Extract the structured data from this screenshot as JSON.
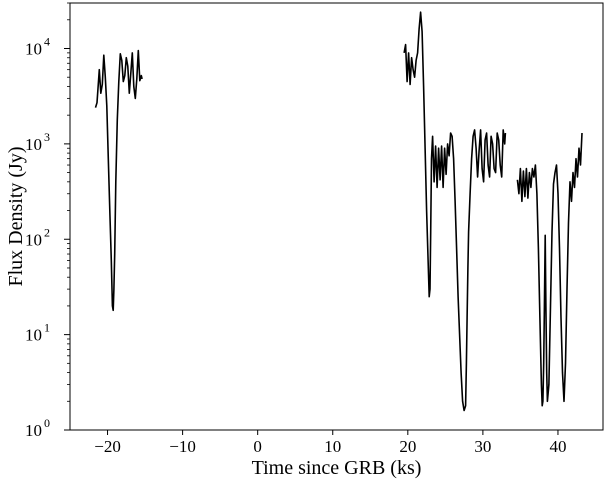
{
  "chart_data": {
    "type": "line",
    "title": "",
    "xlabel": "Time since GRB (ks)",
    "ylabel": "Flux Density (Jy)",
    "xlim": [
      -25,
      46
    ],
    "ylim": [
      1,
      30000
    ],
    "y_scale": "log",
    "grid": false,
    "x_ticks": [
      -20,
      -10,
      0,
      10,
      20,
      30,
      40
    ],
    "x_tick_labels": [
      "−20",
      "−10",
      "0",
      "10",
      "20",
      "30",
      "40"
    ],
    "y_ticks": [
      {
        "value": 1,
        "base": "10",
        "exp": "0"
      },
      {
        "value": 10,
        "base": "10",
        "exp": "1"
      },
      {
        "value": 100,
        "base": "10",
        "exp": "2"
      },
      {
        "value": 1000,
        "base": "10",
        "exp": "3"
      },
      {
        "value": 10000,
        "base": "10",
        "exp": "4"
      }
    ],
    "line_color": "#000000",
    "series": [
      {
        "segment": 1,
        "x": [
          -21.6,
          -21.4,
          -21.1,
          -20.9,
          -20.7,
          -20.5,
          -20.3,
          -20.1,
          -19.9,
          -19.7,
          -19.5,
          -19.35,
          -19.25,
          -19.15,
          -19.05,
          -18.9,
          -18.7,
          -18.5,
          -18.3,
          -18.1,
          -17.9,
          -17.7,
          -17.5,
          -17.3,
          -17.1,
          -16.9,
          -16.7,
          -16.5,
          -16.3,
          -16.1,
          -15.9,
          -15.7,
          -15.5,
          -15.4
        ],
        "y": [
          2400,
          2700,
          6000,
          3400,
          4200,
          8500,
          5000,
          2500,
          700,
          200,
          60,
          20,
          18,
          30,
          70,
          400,
          1800,
          4500,
          8800,
          7500,
          4500,
          5200,
          8000,
          6500,
          3400,
          5500,
          9000,
          4000,
          3000,
          4800,
          9500,
          4600,
          5200,
          4800
        ]
      },
      {
        "segment": 2,
        "x": [
          19.5,
          19.7,
          19.9,
          20.1,
          20.3,
          20.5,
          20.7,
          20.9,
          21.1,
          21.3,
          21.5,
          21.7,
          21.9,
          22.1,
          22.3,
          22.5,
          22.7,
          22.85,
          22.95,
          23.05,
          23.15,
          23.3,
          23.5,
          23.7,
          23.9,
          24.1,
          24.3,
          24.5,
          24.7,
          24.9,
          25.1,
          25.3,
          25.5,
          25.7,
          25.9,
          26.1,
          26.3,
          26.5,
          26.7,
          26.9,
          27.1,
          27.3,
          27.5,
          27.7,
          27.8,
          27.9,
          28.0,
          28.1,
          28.3,
          28.5,
          28.7,
          28.9,
          29.1,
          29.3,
          29.5,
          29.7,
          29.9,
          30.1,
          30.3,
          30.5,
          30.7,
          30.9,
          31.1,
          31.3,
          31.5,
          31.7,
          31.9,
          32.1,
          32.3,
          32.5,
          32.7,
          32.9,
          33.0
        ],
        "y": [
          9000,
          11000,
          4500,
          9000,
          4200,
          8000,
          6000,
          5000,
          7500,
          9000,
          16000,
          24000,
          15000,
          4000,
          900,
          200,
          60,
          25,
          30,
          120,
          700,
          1200,
          400,
          950,
          350,
          900,
          420,
          950,
          350,
          900,
          480,
          1000,
          750,
          1300,
          1200,
          700,
          250,
          80,
          25,
          10,
          4,
          2,
          1.6,
          1.8,
          5,
          15,
          50,
          120,
          300,
          700,
          1200,
          1400,
          900,
          450,
          850,
          1400,
          550,
          400,
          1100,
          1300,
          600,
          450,
          1200,
          1000,
          550,
          500,
          1300,
          1100,
          600,
          450,
          1400,
          1000,
          1300
        ]
      },
      {
        "segment": 3,
        "x": [
          34.6,
          34.8,
          35.0,
          35.2,
          35.4,
          35.6,
          35.8,
          36.0,
          36.2,
          36.4,
          36.6,
          36.8,
          37.0,
          37.2,
          37.4,
          37.6,
          37.8,
          37.9,
          38.0,
          38.1,
          38.2,
          38.3,
          38.4,
          38.5,
          38.6,
          38.8,
          39.0,
          39.2,
          39.4,
          39.6,
          39.8,
          40.0,
          40.2,
          40.4,
          40.6,
          40.8,
          41.0,
          41.2,
          41.4,
          41.6,
          41.8,
          42.0,
          42.2,
          42.4,
          42.6,
          42.8,
          43.0,
          43.2
        ],
        "y": [
          420,
          300,
          550,
          250,
          520,
          280,
          550,
          270,
          500,
          350,
          550,
          450,
          600,
          300,
          80,
          15,
          3,
          1.8,
          2,
          5,
          20,
          110,
          20,
          4,
          2,
          3,
          20,
          120,
          380,
          500,
          600,
          300,
          80,
          15,
          4,
          2,
          5,
          30,
          150,
          400,
          250,
          500,
          350,
          700,
          450,
          900,
          600,
          1300
        ]
      }
    ]
  }
}
